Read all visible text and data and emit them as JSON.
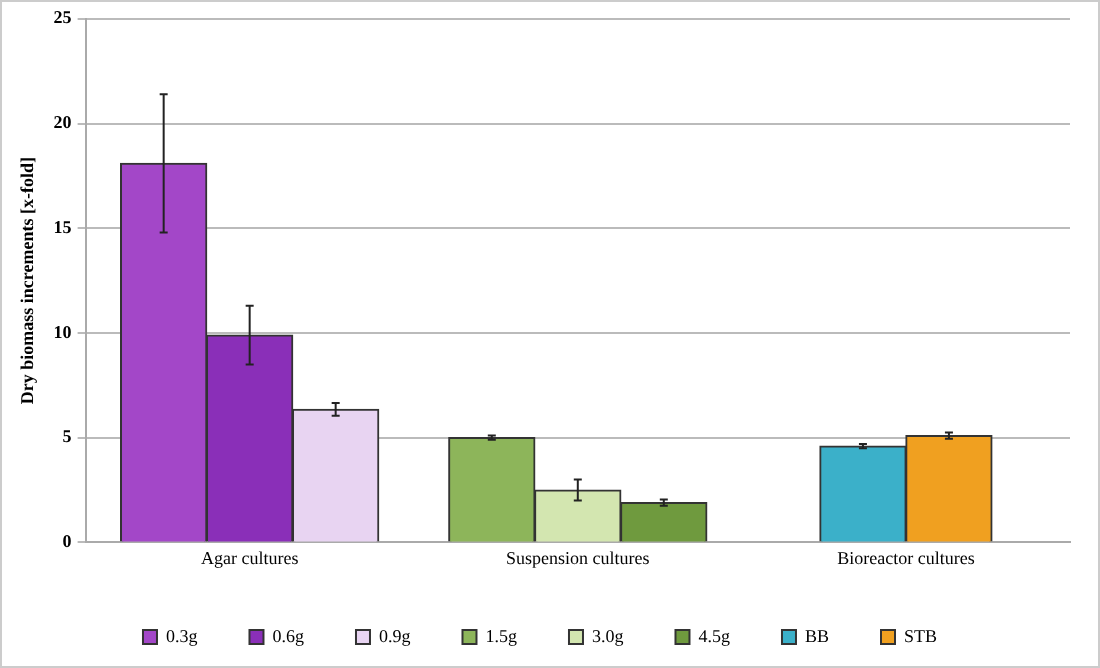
{
  "chart_data": {
    "type": "bar",
    "ylabel": "Dry biomass increments [x-fold]",
    "categories": [
      "Agar cultures",
      "Suspension cultures",
      "Bioreactor cultures"
    ],
    "series": [
      {
        "name": "0.3g",
        "color": "#a347c8",
        "values": [
          18.1,
          null,
          null
        ],
        "errors": [
          3.3,
          null,
          null
        ]
      },
      {
        "name": "0.6g",
        "color": "#8a2fb8",
        "values": [
          9.9,
          null,
          null
        ],
        "errors": [
          1.4,
          null,
          null
        ]
      },
      {
        "name": "0.9g",
        "color": "#e8d4f2",
        "values": [
          6.35,
          null,
          null
        ],
        "errors": [
          0.3,
          null,
          null
        ]
      },
      {
        "name": "1.5g",
        "color": "#8db55a",
        "values": [
          null,
          5.0,
          null
        ],
        "errors": [
          null,
          0.1,
          null
        ]
      },
      {
        "name": "3.0g",
        "color": "#d3e6b0",
        "values": [
          null,
          2.5,
          null
        ],
        "errors": [
          null,
          0.5,
          null
        ]
      },
      {
        "name": "4.5g",
        "color": "#6f9a3e",
        "values": [
          null,
          1.9,
          null
        ],
        "errors": [
          null,
          0.15,
          null
        ]
      },
      {
        "name": "BB",
        "color": "#3bb0c9",
        "values": [
          null,
          null,
          4.6
        ],
        "errors": [
          null,
          null,
          0.1
        ]
      },
      {
        "name": "STB",
        "color": "#f0a020",
        "values": [
          null,
          null,
          5.1
        ],
        "errors": [
          null,
          null,
          0.15
        ]
      }
    ],
    "ylim": [
      0,
      25
    ],
    "yticks": [
      0,
      5,
      10,
      15,
      20,
      25
    ],
    "grid": "y",
    "legend": "bottom"
  }
}
